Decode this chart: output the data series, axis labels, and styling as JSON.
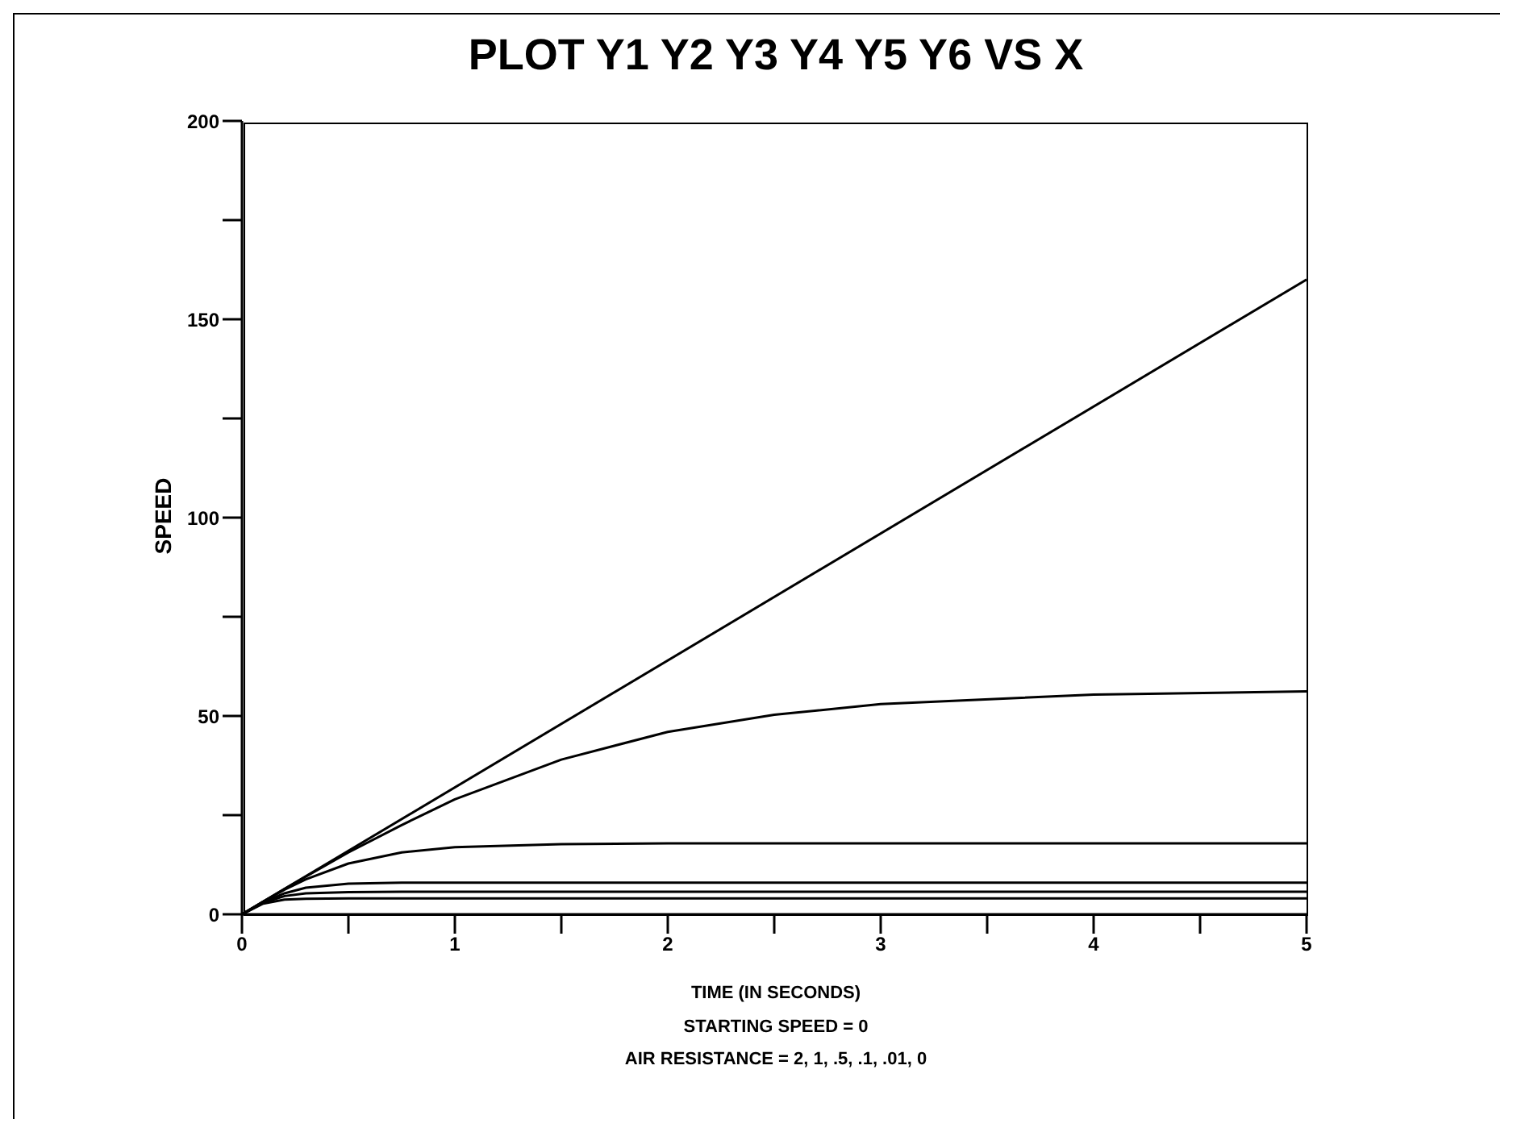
{
  "chart_data": {
    "type": "line",
    "title": "PLOT Y1 Y2 Y3 Y4 Y5 Y6 VS X",
    "xlabel": "TIME (IN SECONDS)",
    "ylabel": "SPEED",
    "annotations": [
      "STARTING SPEED = 0",
      "AIR RESISTANCE = 2, 1, .5, .1, .01, 0"
    ],
    "x": [
      0,
      0.1,
      0.2,
      0.3,
      0.5,
      0.75,
      1,
      1.5,
      2,
      2.5,
      3,
      4,
      5
    ],
    "series": [
      {
        "color": "#000000",
        "values": [
          0,
          2.7,
          3.7,
          3.9,
          4,
          4,
          4,
          4,
          4,
          4,
          4,
          4,
          4
        ]
      },
      {
        "color": "#000000",
        "values": [
          0,
          2.9,
          4.6,
          5.3,
          5.6,
          5.7,
          5.7,
          5.7,
          5.7,
          5.7,
          5.7,
          5.7,
          5.7
        ]
      },
      {
        "color": "#000000",
        "values": [
          0,
          3,
          5.3,
          6.7,
          7.7,
          8,
          8,
          8,
          8,
          8,
          8,
          8,
          8
        ]
      },
      {
        "color": "#000000",
        "values": [
          0,
          3.2,
          6.2,
          8.8,
          12.8,
          15.6,
          16.9,
          17.7,
          17.9,
          17.9,
          17.9,
          17.9,
          17.9
        ]
      },
      {
        "color": "#000000",
        "values": [
          0,
          3.2,
          6.4,
          9.5,
          15.6,
          22.5,
          29,
          39,
          46,
          50.3,
          53,
          55.4,
          56.2
        ]
      },
      {
        "color": "#000000",
        "x": [
          0,
          5
        ],
        "values": [
          0,
          160
        ]
      }
    ],
    "xlim": [
      0,
      5
    ],
    "xticks": [
      0,
      {
        "value": 0.5,
        "label": null
      },
      1,
      {
        "value": 1.5,
        "label": null
      },
      2,
      {
        "value": 2.5,
        "label": null
      },
      3,
      {
        "value": 3.5,
        "label": null
      },
      4,
      {
        "value": 4.5,
        "label": null
      },
      5
    ],
    "ylim": [
      0,
      200
    ],
    "yticks": [
      0,
      {
        "value": 25,
        "label": null
      },
      50,
      {
        "value": 75,
        "label": null
      },
      100,
      {
        "value": 125,
        "label": null
      },
      150,
      {
        "value": 175,
        "label": null
      },
      200
    ],
    "grid": false,
    "legend": false,
    "marker": "none",
    "line_style": "solid"
  }
}
